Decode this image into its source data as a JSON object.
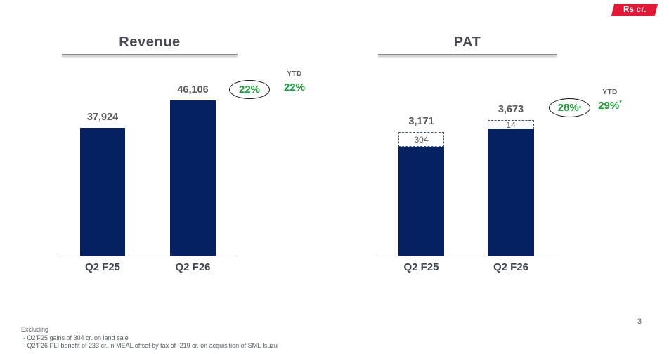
{
  "badge": {
    "label": "Rs cr."
  },
  "page_number": "3",
  "colors": {
    "bar_navy": "#062161",
    "accent_red": "#e31837",
    "green": "#1d9b38",
    "circle_stroke": "#101010"
  },
  "footnotes": {
    "title": "Excluding",
    "items": [
      "- Q2’F25 gains of 304 cr. on land sale",
      "- Q2’F26 PLI benefit of 233 cr. in MEAL offset by tax of -219 cr. on acquisition of SML Isuzu"
    ]
  },
  "chart_data": [
    {
      "type": "bar",
      "title": "Revenue",
      "unit": "Rs cr.",
      "categories": [
        "Q2 F25",
        "Q2 F26"
      ],
      "values": [
        37924,
        46106
      ],
      "value_labels": [
        "37,924",
        "46,106"
      ],
      "growth": {
        "circled": "22%",
        "circled_sup": "",
        "ytd_label": "YTD",
        "ytd_value": "22%",
        "ytd_sup": ""
      },
      "ylim": [
        0,
        50000
      ],
      "grid": false,
      "legend": "none"
    },
    {
      "type": "bar",
      "title": "PAT",
      "unit": "Rs cr.",
      "categories": [
        "Q2 F25",
        "Q2 F26"
      ],
      "series": [
        {
          "name": "PAT",
          "values": [
            3171,
            3673
          ]
        },
        {
          "name": "excluded one-off items (dashed box)",
          "values": [
            304,
            14
          ]
        }
      ],
      "value_labels": [
        "3,171",
        "3,673"
      ],
      "box_labels": [
        "304",
        "14"
      ],
      "growth": {
        "circled": "28%",
        "circled_sup": "*",
        "ytd_label": "YTD",
        "ytd_value": "29%",
        "ytd_sup": "*"
      },
      "ylim": [
        0,
        4000
      ],
      "grid": false,
      "legend": "none"
    }
  ]
}
